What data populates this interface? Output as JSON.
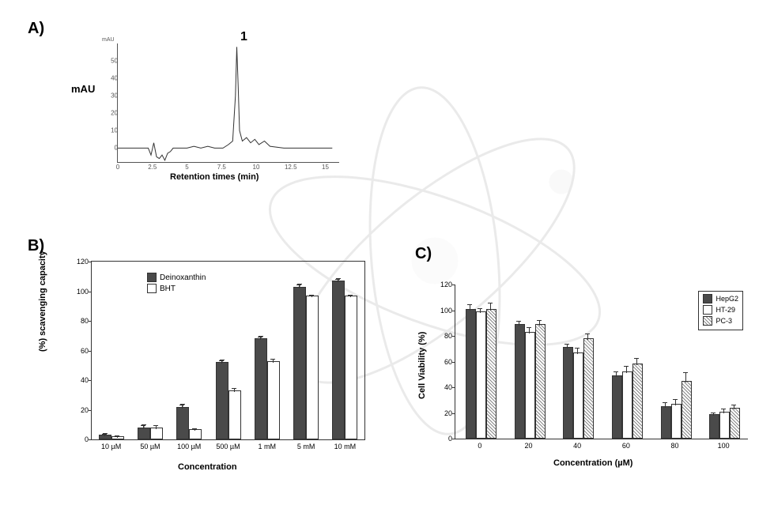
{
  "labels": {
    "A": "A)",
    "B": "B)",
    "C": "C)"
  },
  "panelA": {
    "type": "line",
    "peak_label": "1",
    "ylabel": "mAU",
    "xlabel": "Retention times (min)",
    "mAU_small": "mAU",
    "yticks": [
      0,
      10,
      20,
      30,
      40,
      50
    ],
    "xticks": [
      0,
      2.5,
      5,
      7.5,
      10,
      12.5,
      15
    ],
    "xlim": [
      0,
      16
    ],
    "ylim": [
      -8,
      60
    ],
    "line_color": "#333333",
    "axis_color": "#555555",
    "trace": [
      [
        0.0,
        0
      ],
      [
        1.0,
        0
      ],
      [
        1.8,
        0
      ],
      [
        2.2,
        0
      ],
      [
        2.4,
        -4
      ],
      [
        2.6,
        3
      ],
      [
        2.8,
        -5
      ],
      [
        3.0,
        -6
      ],
      [
        3.2,
        -4
      ],
      [
        3.4,
        -7
      ],
      [
        3.6,
        -3
      ],
      [
        3.8,
        -2
      ],
      [
        4.0,
        0
      ],
      [
        5.0,
        0
      ],
      [
        5.5,
        1
      ],
      [
        6.0,
        0
      ],
      [
        6.5,
        1
      ],
      [
        7.0,
        0
      ],
      [
        7.6,
        0
      ],
      [
        8.0,
        2
      ],
      [
        8.3,
        4
      ],
      [
        8.5,
        30
      ],
      [
        8.6,
        58
      ],
      [
        8.7,
        35
      ],
      [
        8.8,
        10
      ],
      [
        9.0,
        4
      ],
      [
        9.3,
        6
      ],
      [
        9.6,
        3
      ],
      [
        9.9,
        5
      ],
      [
        10.2,
        2
      ],
      [
        10.6,
        4
      ],
      [
        11.0,
        1
      ],
      [
        12.0,
        0
      ],
      [
        13.0,
        0
      ],
      [
        14.0,
        0
      ],
      [
        15.5,
        0
      ]
    ]
  },
  "panelB": {
    "type": "bar",
    "ylabel": "(%) scavenging capacity",
    "xlabel": "Concentration",
    "legend": [
      {
        "label": "Deinoxanthin",
        "fill": "#4a4a4a"
      },
      {
        "label": "BHT",
        "fill": "#ffffff"
      }
    ],
    "categories": [
      "10 µM",
      "50 µM",
      "100 µM",
      "500 µM",
      "1 mM",
      "5 mM",
      "10 mM"
    ],
    "series": {
      "Deinoxanthin": {
        "values": [
          2,
          7,
          21,
          51,
          67,
          102,
          106
        ],
        "errors": [
          1,
          2,
          2,
          2,
          2,
          2,
          2
        ],
        "fill": "#4a4a4a"
      },
      "BHT": {
        "values": [
          1,
          7,
          6,
          32,
          52,
          96,
          96
        ],
        "errors": [
          1,
          2,
          1,
          2,
          2,
          1,
          1
        ],
        "fill": "#ffffff"
      }
    },
    "ylim": [
      0,
      120
    ],
    "yticks": [
      0,
      20,
      40,
      60,
      80,
      100,
      120
    ],
    "bar_colors": {
      "dark": "#4a4a4a",
      "light": "#ffffff"
    },
    "border": "#333333",
    "title_fontsize": 11,
    "tick_fontsize": 9
  },
  "panelC": {
    "type": "bar",
    "ylabel": "Cell Viability (%)",
    "xlabel": "Concentration (µM)",
    "legend": [
      {
        "label": "HepG2",
        "fill": "#4a4a4a"
      },
      {
        "label": "HT-29",
        "fill": "#ffffff"
      },
      {
        "label": "PC-3",
        "fill": "hatch"
      }
    ],
    "categories": [
      "0",
      "20",
      "40",
      "60",
      "80",
      "100"
    ],
    "series": {
      "HepG2": {
        "values": [
          100,
          88,
          70,
          48,
          24,
          18
        ],
        "errors": [
          4,
          3,
          3,
          4,
          4,
          2
        ],
        "fill": "#4a4a4a"
      },
      "HT-29": {
        "values": [
          98,
          82,
          66,
          51,
          26,
          20
        ],
        "errors": [
          3,
          4,
          4,
          5,
          4,
          3
        ],
        "fill": "#ffffff"
      },
      "PC-3": {
        "values": [
          100,
          88,
          77,
          57,
          44,
          23
        ],
        "errors": [
          5,
          4,
          4,
          5,
          7,
          3
        ],
        "fill": "hatch"
      }
    },
    "ylim": [
      0,
      120
    ],
    "yticks": [
      0,
      20,
      40,
      60,
      80,
      100,
      120
    ],
    "border": "#333333",
    "tick_fontsize": 9
  },
  "style": {
    "bg": "#ffffff",
    "font": "Arial",
    "label_fontsize": 20
  }
}
